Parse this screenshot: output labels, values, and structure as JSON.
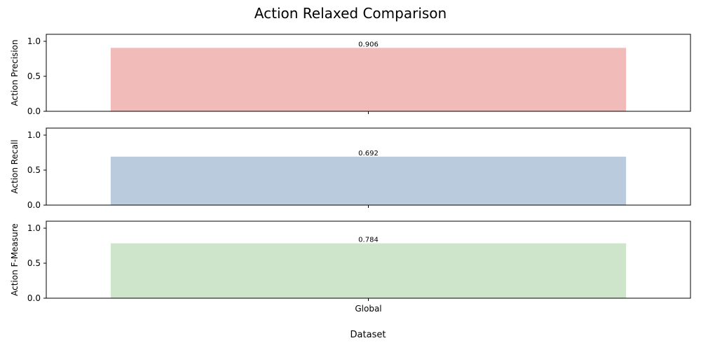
{
  "chart_data": {
    "type": "bar",
    "title": "Action Relaxed Comparison",
    "xlabel": "Dataset",
    "categories": [
      "Global"
    ],
    "grid": false,
    "legend": "none",
    "panels": [
      {
        "ylabel": "Action Precision",
        "ylim": [
          0,
          1.1
        ],
        "yticks": [
          "0.0",
          "0.5",
          "1.0"
        ],
        "values": [
          0.906
        ],
        "value_labels": [
          "0.906"
        ],
        "color": "#f0bbb8",
        "show_category_labels": false
      },
      {
        "ylabel": "Action Recall",
        "ylim": [
          0,
          1.1
        ],
        "yticks": [
          "0.0",
          "0.5",
          "1.0"
        ],
        "values": [
          0.692
        ],
        "value_labels": [
          "0.692"
        ],
        "color": "#b9cbdc",
        "show_category_labels": false
      },
      {
        "ylabel": "Action F-Measure",
        "ylim": [
          0,
          1.1
        ],
        "yticks": [
          "0.0",
          "0.5",
          "1.0"
        ],
        "values": [
          0.784
        ],
        "value_labels": [
          "0.784"
        ],
        "color": "#cfe5cb",
        "show_category_labels": true
      }
    ]
  }
}
